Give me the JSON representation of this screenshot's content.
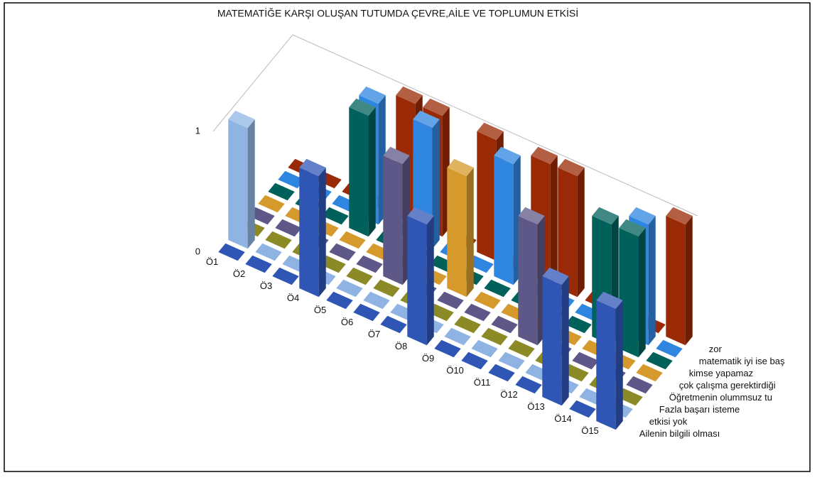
{
  "chart_data": {
    "type": "bar3d",
    "title": "MATEMATİĞE KARŞI OLUŞAN TUTUMDA ÇEVRE,AİLE VE TOPLUMUN ETKİSİ",
    "categories": [
      "Ö1",
      "Ö2",
      "Ö3",
      "Ö4",
      "Ö5",
      "Ö6",
      "Ö7",
      "Ö8",
      "Ö9",
      "Ö10",
      "Ö11",
      "Ö12",
      "Ö13",
      "Ö14",
      "Ö15"
    ],
    "series": [
      {
        "name": "Ailenin bilgili olması",
        "color": "#2f55b5",
        "values": [
          0,
          0,
          0,
          1,
          0,
          0,
          0,
          1,
          0,
          0,
          0,
          0,
          1,
          0,
          1
        ]
      },
      {
        "name": "etkisi yok",
        "color": "#8fb4e3",
        "values": [
          1,
          0,
          0,
          0,
          0,
          0,
          0,
          0,
          0,
          0,
          0,
          0,
          0,
          0,
          0
        ]
      },
      {
        "name": "Fazla başarı isteme",
        "color": "#8c8a26",
        "values": [
          0,
          0,
          0,
          0,
          0,
          0,
          0,
          0,
          0,
          0,
          0,
          0,
          0,
          0,
          0
        ]
      },
      {
        "name": "Öğretmenin olummsuz tu",
        "color": "#5e5888",
        "values": [
          0,
          0,
          0,
          0,
          0,
          1,
          0,
          0,
          0,
          0,
          1,
          0,
          0,
          0,
          0
        ]
      },
      {
        "name": "çok çalışma gerektirdiği",
        "color": "#d69a2c",
        "values": [
          0,
          0,
          0,
          0,
          0,
          0,
          0,
          1,
          0,
          0,
          0,
          0,
          0,
          0,
          0
        ]
      },
      {
        "name": "kimse yapamaz",
        "color": "#00605a",
        "values": [
          0,
          0,
          0,
          1,
          0,
          0,
          0,
          0,
          0,
          0,
          0,
          0,
          1,
          1,
          0
        ]
      },
      {
        "name": "matematik iyi ise baş",
        "color": "#2f86e0",
        "values": [
          0,
          0,
          0,
          1,
          0,
          1,
          0,
          0,
          1,
          0,
          0,
          0,
          0,
          1,
          0
        ]
      },
      {
        "name": "zor",
        "color": "#9a2a05",
        "values": [
          0,
          0,
          0,
          0,
          1,
          1,
          0,
          1,
          0,
          1,
          1,
          0,
          0,
          0,
          1
        ]
      }
    ],
    "ylim": [
      0,
      1
    ],
    "yticks": [
      0,
      1
    ],
    "grid": true
  }
}
